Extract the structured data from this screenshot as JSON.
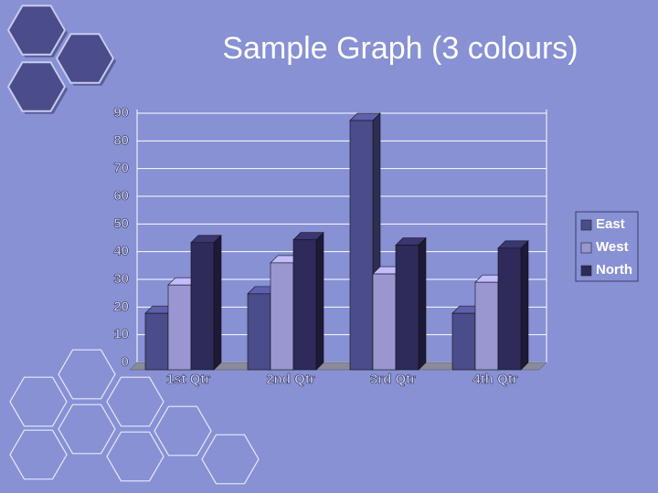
{
  "chart_data": {
    "type": "bar3d",
    "title": "Sample Graph (3 colours)",
    "categories": [
      "1st Qtr",
      "2nd Qtr",
      "3rd Qtr",
      "4th Qtr"
    ],
    "series": [
      {
        "name": "East",
        "color": "#4b4c8a",
        "values": [
          20.4,
          27.4,
          90,
          20.4
        ]
      },
      {
        "name": "West",
        "color": "#9a97d0",
        "values": [
          30.6,
          38.6,
          34.6,
          31.6
        ]
      },
      {
        "name": "North",
        "color": "#2e2b5a",
        "values": [
          45.9,
          46.9,
          45,
          43.9
        ]
      }
    ],
    "ylim": [
      0,
      90
    ],
    "yticks": [
      0,
      10,
      20,
      30,
      40,
      50,
      60,
      70,
      80,
      90
    ],
    "grid": true,
    "legend": "right"
  }
}
